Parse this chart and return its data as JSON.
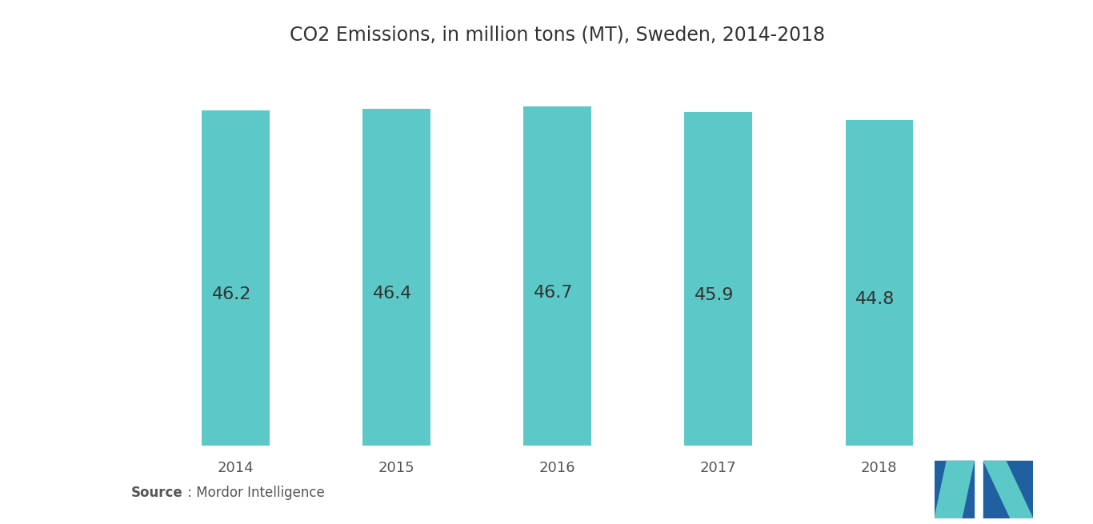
{
  "title": "CO2 Emissions, in million tons (MT), Sweden, 2014-2018",
  "categories": [
    "2014",
    "2015",
    "2016",
    "2017",
    "2018"
  ],
  "values": [
    46.2,
    46.4,
    46.7,
    45.9,
    44.8
  ],
  "bar_color": "#5CC8C8",
  "bar_width": 0.42,
  "label_color": "#333333",
  "label_fontsize": 16,
  "title_fontsize": 17,
  "tick_fontsize": 13,
  "background_color": "#ffffff",
  "ylim": [
    0,
    52
  ],
  "source_bold": "Source",
  "source_text": " : Mordor Intelligence"
}
